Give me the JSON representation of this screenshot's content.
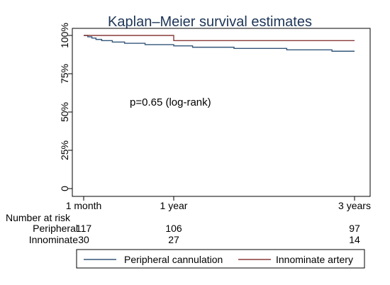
{
  "chart_data": {
    "type": "line",
    "title": "Kaplan–Meier survival estimates",
    "annotation": "p=0.65 (log-rank)",
    "y_ticks": [
      {
        "value": 0,
        "label": "0"
      },
      {
        "value": 0.25,
        "label": "25%"
      },
      {
        "value": 0.5,
        "label": "50%"
      },
      {
        "value": 0.75,
        "label": "75%"
      },
      {
        "value": 1.0,
        "label": "100%"
      }
    ],
    "x_ticks": [
      {
        "value": 1,
        "label": "1 month"
      },
      {
        "value": 12,
        "label": "1 year"
      },
      {
        "value": 36,
        "label": "3 years"
      }
    ],
    "xlim": [
      1,
      36
    ],
    "ylim": [
      0,
      1
    ],
    "grid": false,
    "legend_position": "bottom",
    "series": [
      {
        "name": "Peripheral cannulation",
        "color": "#33567a",
        "steps": [
          [
            1,
            1.0
          ],
          [
            1.5,
            0.991
          ],
          [
            2.0,
            0.983
          ],
          [
            2.5,
            0.974
          ],
          [
            3.2,
            0.966
          ],
          [
            4.5,
            0.957
          ],
          [
            6.0,
            0.949
          ],
          [
            8.5,
            0.94
          ],
          [
            12.0,
            0.932
          ],
          [
            14.5,
            0.923
          ],
          [
            20.0,
            0.915
          ],
          [
            27.0,
            0.906
          ],
          [
            33.0,
            0.897
          ],
          [
            36,
            0.897
          ]
        ]
      },
      {
        "name": "Innominate artery",
        "color": "#8b3a3a",
        "steps": [
          [
            1,
            1.0
          ],
          [
            12.0,
            0.966
          ],
          [
            36,
            0.966
          ]
        ]
      }
    ],
    "risk_table": {
      "heading": "Number at risk",
      "rows": [
        {
          "label": "Peripheral",
          "counts": [
            "117",
            "106",
            "97"
          ]
        },
        {
          "label": "Innominate",
          "counts": [
            "30",
            "27",
            "14"
          ]
        }
      ]
    }
  }
}
